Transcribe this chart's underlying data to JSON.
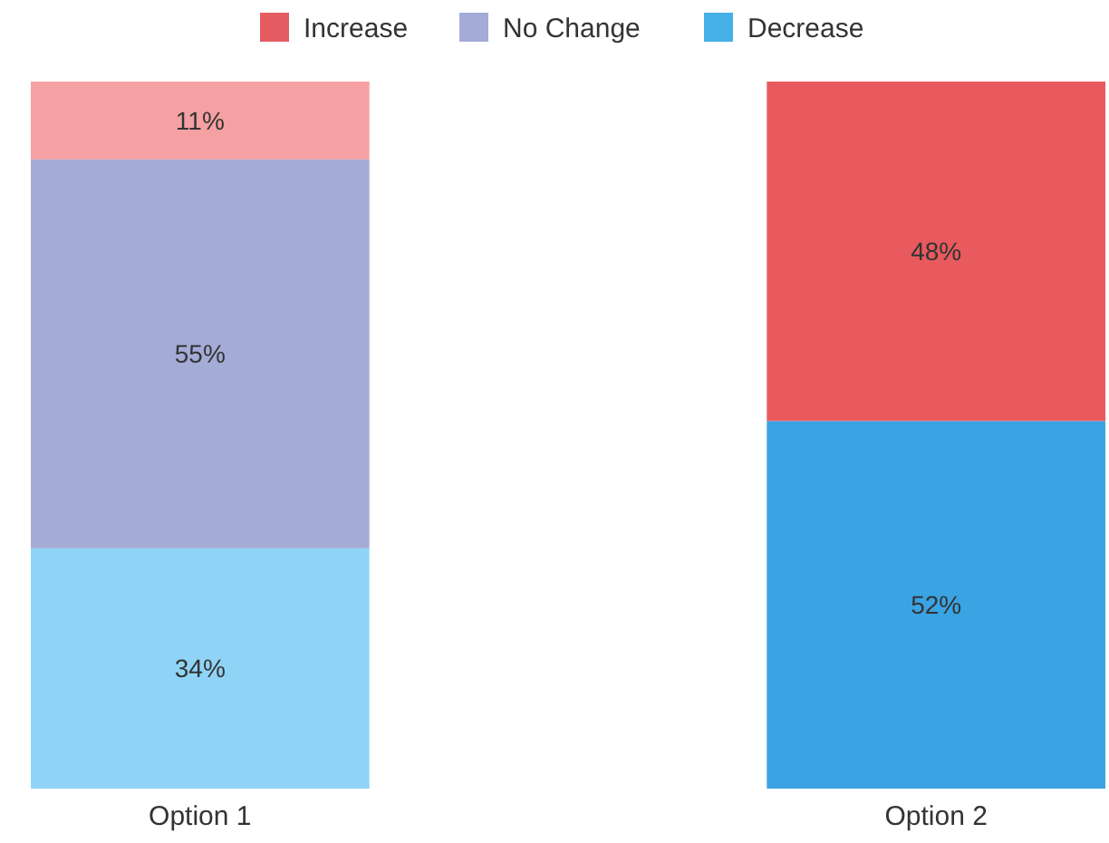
{
  "chart_data": {
    "type": "bar",
    "stacked": true,
    "legend": "top",
    "categories": [
      "Option 1",
      "Option 2"
    ],
    "tick_labels": "x",
    "series": [
      {
        "name": "Decrease",
        "color": "#45b1e8",
        "colors": [
          "#8fd4f6",
          "#3aa3e3"
        ],
        "values": [
          34,
          52
        ],
        "value_labels": [
          "34%",
          "52%"
        ]
      },
      {
        "name": "No Change",
        "color": "#a3abd6",
        "values": [
          55,
          null
        ],
        "value_labels": [
          "55%",
          null
        ]
      },
      {
        "name": "Increase",
        "color": "#e45b62",
        "colors": [
          "#f5a0a2",
          "#e85a5e"
        ],
        "values": [
          11,
          48
        ],
        "value_labels": [
          "11%",
          "48%"
        ]
      }
    ]
  }
}
